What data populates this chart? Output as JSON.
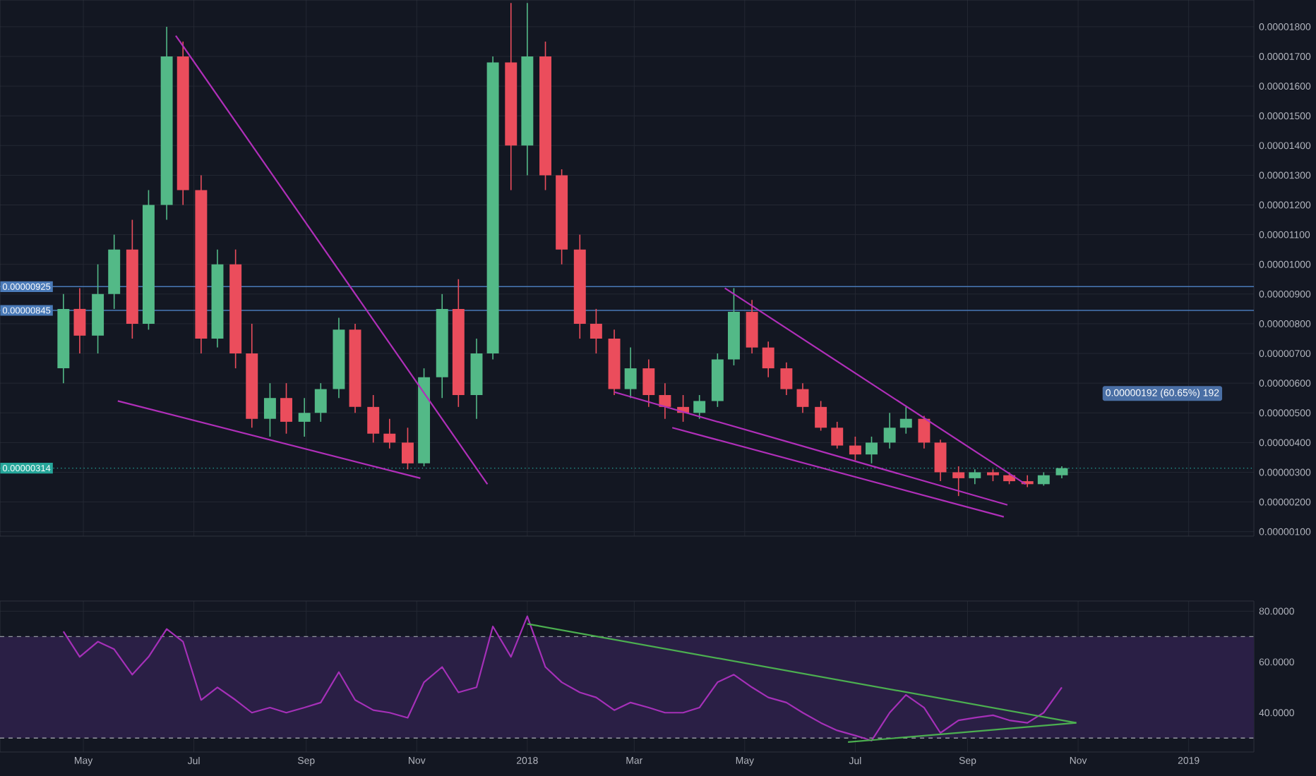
{
  "chart_data": [
    {
      "type": "candlestick",
      "tick_labels": "y",
      "grid": true,
      "x": [
        "2017-04-20",
        "2017-04-29",
        "2017-05-09",
        "2017-05-18",
        "2017-05-28",
        "2017-06-06",
        "2017-06-16",
        "2017-06-25",
        "2017-07-05",
        "2017-07-14",
        "2017-07-24",
        "2017-08-02",
        "2017-08-12",
        "2017-08-21",
        "2017-08-31",
        "2017-09-09",
        "2017-09-19",
        "2017-09-28",
        "2017-10-08",
        "2017-10-17",
        "2017-10-27",
        "2017-11-05",
        "2017-11-15",
        "2017-11-24",
        "2017-12-04",
        "2017-12-13",
        "2017-12-23",
        "2018-01-01",
        "2018-01-11",
        "2018-01-20",
        "2018-01-30",
        "2018-02-08",
        "2018-02-18",
        "2018-02-27",
        "2018-03-09",
        "2018-03-18",
        "2018-03-28",
        "2018-04-06",
        "2018-04-16",
        "2018-04-25",
        "2018-05-05",
        "2018-05-14",
        "2018-05-24",
        "2018-06-02",
        "2018-06-12",
        "2018-06-21",
        "2018-07-01",
        "2018-07-10",
        "2018-07-20",
        "2018-07-29",
        "2018-08-08",
        "2018-08-17",
        "2018-08-27",
        "2018-09-05",
        "2018-09-15",
        "2018-09-24",
        "2018-10-04",
        "2018-10-13",
        "2018-10-23"
      ],
      "ohlc": [
        [
          6.5e-06,
          9e-06,
          6e-06,
          8.5e-06
        ],
        [
          8.5e-06,
          9.2e-06,
          7e-06,
          7.6e-06
        ],
        [
          7.6e-06,
          1e-05,
          7e-06,
          9e-06
        ],
        [
          9e-06,
          1.1e-05,
          8.5e-06,
          1.05e-05
        ],
        [
          1.05e-05,
          1.15e-05,
          7.5e-06,
          8e-06
        ],
        [
          8e-06,
          1.25e-05,
          7.8e-06,
          1.2e-05
        ],
        [
          1.2e-05,
          1.8e-05,
          1.15e-05,
          1.7e-05
        ],
        [
          1.7e-05,
          1.75e-05,
          1.2e-05,
          1.25e-05
        ],
        [
          1.25e-05,
          1.3e-05,
          7e-06,
          7.5e-06
        ],
        [
          7.5e-06,
          1.05e-05,
          7.2e-06,
          1e-05
        ],
        [
          1e-05,
          1.05e-05,
          6.5e-06,
          7e-06
        ],
        [
          7e-06,
          8e-06,
          4.5e-06,
          4.8e-06
        ],
        [
          4.8e-06,
          6e-06,
          4.2e-06,
          5.5e-06
        ],
        [
          5.5e-06,
          6e-06,
          4.3e-06,
          4.7e-06
        ],
        [
          4.7e-06,
          5.5e-06,
          4.2e-06,
          5e-06
        ],
        [
          5e-06,
          6e-06,
          4.7e-06,
          5.8e-06
        ],
        [
          5.8e-06,
          8.2e-06,
          5.5e-06,
          7.8e-06
        ],
        [
          7.8e-06,
          8e-06,
          5e-06,
          5.2e-06
        ],
        [
          5.2e-06,
          5.6e-06,
          4e-06,
          4.3e-06
        ],
        [
          4.3e-06,
          4.8e-06,
          3.8e-06,
          4e-06
        ],
        [
          4e-06,
          4.5e-06,
          3.1e-06,
          3.3e-06
        ],
        [
          3.3e-06,
          6.5e-06,
          3.2e-06,
          6.2e-06
        ],
        [
          6.2e-06,
          9e-06,
          5.5e-06,
          8.5e-06
        ],
        [
          8.5e-06,
          9.5e-06,
          5.2e-06,
          5.6e-06
        ],
        [
          5.6e-06,
          7.5e-06,
          4.8e-06,
          7e-06
        ],
        [
          7e-06,
          1.7e-05,
          6.8e-06,
          1.68e-05
        ],
        [
          1.68e-05,
          1.88e-05,
          1.25e-05,
          1.4e-05
        ],
        [
          1.4e-05,
          1.88e-05,
          1.3e-05,
          1.7e-05
        ],
        [
          1.7e-05,
          1.75e-05,
          1.25e-05,
          1.3e-05
        ],
        [
          1.3e-05,
          1.32e-05,
          1e-05,
          1.05e-05
        ],
        [
          1.05e-05,
          1.1e-05,
          7.5e-06,
          8e-06
        ],
        [
          8e-06,
          8.5e-06,
          7e-06,
          7.5e-06
        ],
        [
          7.5e-06,
          7.8e-06,
          5.6e-06,
          5.8e-06
        ],
        [
          5.8e-06,
          7.2e-06,
          5.5e-06,
          6.5e-06
        ],
        [
          6.5e-06,
          6.8e-06,
          5.2e-06,
          5.6e-06
        ],
        [
          5.6e-06,
          6e-06,
          4.8e-06,
          5.2e-06
        ],
        [
          5.2e-06,
          5.6e-06,
          4.7e-06,
          5e-06
        ],
        [
          5e-06,
          5.6e-06,
          4.8e-06,
          5.4e-06
        ],
        [
          5.4e-06,
          7e-06,
          5.2e-06,
          6.8e-06
        ],
        [
          6.8e-06,
          9.2e-06,
          6.6e-06,
          8.4e-06
        ],
        [
          8.4e-06,
          8.8e-06,
          7e-06,
          7.2e-06
        ],
        [
          7.2e-06,
          7.4e-06,
          6.2e-06,
          6.5e-06
        ],
        [
          6.5e-06,
          6.7e-06,
          5.6e-06,
          5.8e-06
        ],
        [
          5.8e-06,
          6e-06,
          5e-06,
          5.2e-06
        ],
        [
          5.2e-06,
          5.4e-06,
          4.4e-06,
          4.5e-06
        ],
        [
          4.5e-06,
          4.7e-06,
          3.8e-06,
          3.9e-06
        ],
        [
          3.9e-06,
          4.2e-06,
          3.4e-06,
          3.6e-06
        ],
        [
          3.6e-06,
          4.2e-06,
          3.3e-06,
          4e-06
        ],
        [
          4e-06,
          5e-06,
          3.8e-06,
          4.5e-06
        ],
        [
          4.5e-06,
          5.2e-06,
          4.3e-06,
          4.8e-06
        ],
        [
          4.8e-06,
          4.9e-06,
          3.8e-06,
          4e-06
        ],
        [
          4e-06,
          4.1e-06,
          2.7e-06,
          3e-06
        ],
        [
          3e-06,
          3.2e-06,
          2.2e-06,
          2.8e-06
        ],
        [
          2.8e-06,
          3.1e-06,
          2.6e-06,
          3e-06
        ],
        [
          3e-06,
          3.1e-06,
          2.7e-06,
          2.9e-06
        ],
        [
          2.9e-06,
          3e-06,
          2.6e-06,
          2.7e-06
        ],
        [
          2.7e-06,
          2.9e-06,
          2.5e-06,
          2.6e-06
        ],
        [
          2.6e-06,
          3e-06,
          2.55e-06,
          2.9e-06
        ],
        [
          2.9e-06,
          3.2e-06,
          2.8e-06,
          3.14e-06
        ]
      ],
      "colors": [
        "#53b987",
        "#eb4d5c",
        "#53b987",
        "#53b987",
        "#eb4d5c",
        "#53b987",
        "#53b987",
        "#eb4d5c",
        "#eb4d5c",
        "#53b987",
        "#eb4d5c",
        "#eb4d5c",
        "#53b987",
        "#eb4d5c",
        "#53b987",
        "#53b987",
        "#53b987",
        "#eb4d5c",
        "#eb4d5c",
        "#eb4d5c",
        "#eb4d5c",
        "#53b987",
        "#53b987",
        "#eb4d5c",
        "#53b987",
        "#53b987",
        "#eb4d5c",
        "#53b987",
        "#eb4d5c",
        "#eb4d5c",
        "#eb4d5c",
        "#eb4d5c",
        "#eb4d5c",
        "#53b987",
        "#eb4d5c",
        "#eb4d5c",
        "#eb4d5c",
        "#53b987",
        "#53b987",
        "#53b987",
        "#eb4d5c",
        "#eb4d5c",
        "#eb4d5c",
        "#eb4d5c",
        "#eb4d5c",
        "#eb4d5c",
        "#eb4d5c",
        "#53b987",
        "#53b987",
        "#53b987",
        "#eb4d5c",
        "#eb4d5c",
        "#eb4d5c",
        "#53b987",
        "#eb4d5c",
        "#eb4d5c",
        "#eb4d5c",
        "#53b987",
        "#53b987"
      ],
      "series": [
        {
          "type": "line",
          "color": "#b02fb9",
          "x": [
            "2017-06-21",
            "2017-12-10"
          ],
          "values": [
            1.77e-05,
            2.6e-06
          ]
        },
        {
          "type": "line",
          "color": "#b02fb9",
          "x": [
            "2017-05-20",
            "2017-11-03"
          ],
          "values": [
            5.4e-06,
            2.8e-06
          ]
        },
        {
          "type": "line",
          "color": "#b02fb9",
          "x": [
            "2018-04-20",
            "2018-10-03"
          ],
          "values": [
            9.2e-06,
            2.6e-06
          ]
        },
        {
          "type": "line",
          "color": "#b02fb9",
          "x": [
            "2018-02-18",
            "2018-09-23"
          ],
          "values": [
            5.7e-06,
            1.9e-06
          ]
        },
        {
          "type": "line",
          "color": "#b02fb9",
          "x": [
            "2018-03-22",
            "2018-09-21"
          ],
          "values": [
            4.5e-06,
            1.5e-06
          ]
        }
      ],
      "marker": "none",
      "xlim": [
        "2017-03-16",
        "2019-02-06"
      ],
      "ylim": [
        8.5e-07,
        1.89e-05
      ],
      "xticks": [
        {
          "value": "2017-05-01",
          "label": null
        },
        {
          "value": "2017-07-01",
          "label": null
        },
        {
          "value": "2017-09-01",
          "label": null
        },
        {
          "value": "2017-11-01",
          "label": null
        },
        {
          "value": "2018-01-01",
          "label": null
        },
        {
          "value": "2018-03-01",
          "label": null
        },
        {
          "value": "2018-05-01",
          "label": null
        },
        {
          "value": "2018-07-01",
          "label": null
        },
        {
          "value": "2018-09-01",
          "label": null
        },
        {
          "value": "2018-11-01",
          "label": null
        },
        {
          "value": "2019-01-01",
          "label": null
        }
      ],
      "yticks": [
        {
          "value": 1e-06,
          "label": "0.00000100"
        },
        {
          "value": 2e-06,
          "label": "0.00000200"
        },
        {
          "value": 3e-06,
          "label": "0.00000300"
        },
        {
          "value": 4e-06,
          "label": "0.00000400"
        },
        {
          "value": 5e-06,
          "label": "0.00000500"
        },
        {
          "value": 6e-06,
          "label": "0.00000600"
        },
        {
          "value": 7e-06,
          "label": "0.00000700"
        },
        {
          "value": 8e-06,
          "label": "0.00000800"
        },
        {
          "value": 9e-06,
          "label": "0.00000900"
        },
        {
          "value": 1e-05,
          "label": "0.00001000"
        },
        {
          "value": 1.1e-05,
          "label": "0.00001100"
        },
        {
          "value": 1.2e-05,
          "label": "0.00001200"
        },
        {
          "value": 1.3e-05,
          "label": "0.00001300"
        },
        {
          "value": 1.4e-05,
          "label": "0.00001400"
        },
        {
          "value": 1.5e-05,
          "label": "0.00001500"
        },
        {
          "value": 1.6e-05,
          "label": "0.00001600"
        },
        {
          "value": 1.7e-05,
          "label": "0.00001700"
        },
        {
          "value": 1.8e-05,
          "label": "0.00001800"
        }
      ],
      "ref_lines": [
        {
          "axis": "y",
          "value": 9.25e-06,
          "label": "0.00000925",
          "color": "#4a7ab8"
        },
        {
          "axis": "y",
          "value": 8.45e-06,
          "label": "0.00000845",
          "color": "#4a7ab8"
        },
        {
          "axis": "y",
          "value": 3.14e-06,
          "label": "0.00000314",
          "color": "#26a69a",
          "line_style": "dotted"
        }
      ],
      "annotations": [
        "0.00000192 (60.65%) 192"
      ]
    },
    {
      "type": "line",
      "grid": true,
      "marker": "none",
      "x": [
        "2017-04-20",
        "2017-04-29",
        "2017-05-09",
        "2017-05-18",
        "2017-05-28",
        "2017-06-06",
        "2017-06-16",
        "2017-06-25",
        "2017-07-05",
        "2017-07-14",
        "2017-07-24",
        "2017-08-02",
        "2017-08-12",
        "2017-08-21",
        "2017-08-31",
        "2017-09-09",
        "2017-09-19",
        "2017-09-28",
        "2017-10-08",
        "2017-10-17",
        "2017-10-27",
        "2017-11-05",
        "2017-11-15",
        "2017-11-24",
        "2017-12-04",
        "2017-12-13",
        "2017-12-23",
        "2018-01-01",
        "2018-01-11",
        "2018-01-20",
        "2018-01-30",
        "2018-02-08",
        "2018-02-18",
        "2018-02-27",
        "2018-03-09",
        "2018-03-18",
        "2018-03-28",
        "2018-04-06",
        "2018-04-16",
        "2018-04-25",
        "2018-05-05",
        "2018-05-14",
        "2018-05-24",
        "2018-06-02",
        "2018-06-12",
        "2018-06-21",
        "2018-07-01",
        "2018-07-10",
        "2018-07-20",
        "2018-07-29",
        "2018-08-08",
        "2018-08-17",
        "2018-08-27",
        "2018-09-05",
        "2018-09-15",
        "2018-09-24",
        "2018-10-04",
        "2018-10-13",
        "2018-10-23"
      ],
      "series": [
        {
          "color": "#a530b8",
          "values": [
            72,
            62,
            68,
            65,
            55,
            62,
            73,
            68,
            45,
            50,
            45,
            40,
            42,
            40,
            42,
            44,
            56,
            45,
            41,
            40,
            38,
            52,
            58,
            48,
            50,
            74,
            62,
            78,
            58,
            52,
            48,
            46,
            41,
            44,
            42,
            40,
            40,
            42,
            52,
            55,
            50,
            46,
            44,
            40,
            36,
            33,
            31,
            29,
            40,
            47,
            42,
            32,
            37,
            38,
            39,
            37,
            36,
            40,
            50
          ]
        },
        {
          "type": "line",
          "color": "#4caf50",
          "x": [
            "2018-01-01",
            "2018-10-31"
          ],
          "values": [
            75,
            36
          ]
        },
        {
          "type": "line",
          "color": "#4caf50",
          "x": [
            "2018-06-27",
            "2018-10-31"
          ],
          "values": [
            28.4,
            36
          ]
        }
      ],
      "xlim": [
        "2017-03-16",
        "2019-02-06"
      ],
      "ylim": [
        24.5,
        84
      ],
      "xticks": [
        {
          "value": "2017-05-01",
          "label": "May"
        },
        {
          "value": "2017-07-01",
          "label": "Jul"
        },
        {
          "value": "2017-09-01",
          "label": "Sep"
        },
        {
          "value": "2017-11-01",
          "label": "Nov"
        },
        {
          "value": "2018-01-01",
          "label": "2018"
        },
        {
          "value": "2018-03-01",
          "label": "Mar"
        },
        {
          "value": "2018-05-01",
          "label": "May"
        },
        {
          "value": "2018-07-01",
          "label": "Jul"
        },
        {
          "value": "2018-09-01",
          "label": "Sep"
        },
        {
          "value": "2018-11-01",
          "label": "Nov"
        },
        {
          "value": "2019-01-01",
          "label": "2019"
        }
      ],
      "yticks": [
        {
          "value": 40,
          "label": "40.0000"
        },
        {
          "value": 60,
          "label": "60.0000"
        },
        {
          "value": 80,
          "label": "80.0000"
        }
      ],
      "ref_lines": [
        {
          "axis": "y",
          "value": 70,
          "color": "#9598a1",
          "line_style": "dashed"
        },
        {
          "axis": "y",
          "value": 30,
          "color": "#9598a1",
          "line_style": "dashed"
        }
      ],
      "bands": [
        {
          "axis": "y",
          "from": 30,
          "to": 70,
          "color": "#2a1f45"
        }
      ]
    }
  ]
}
